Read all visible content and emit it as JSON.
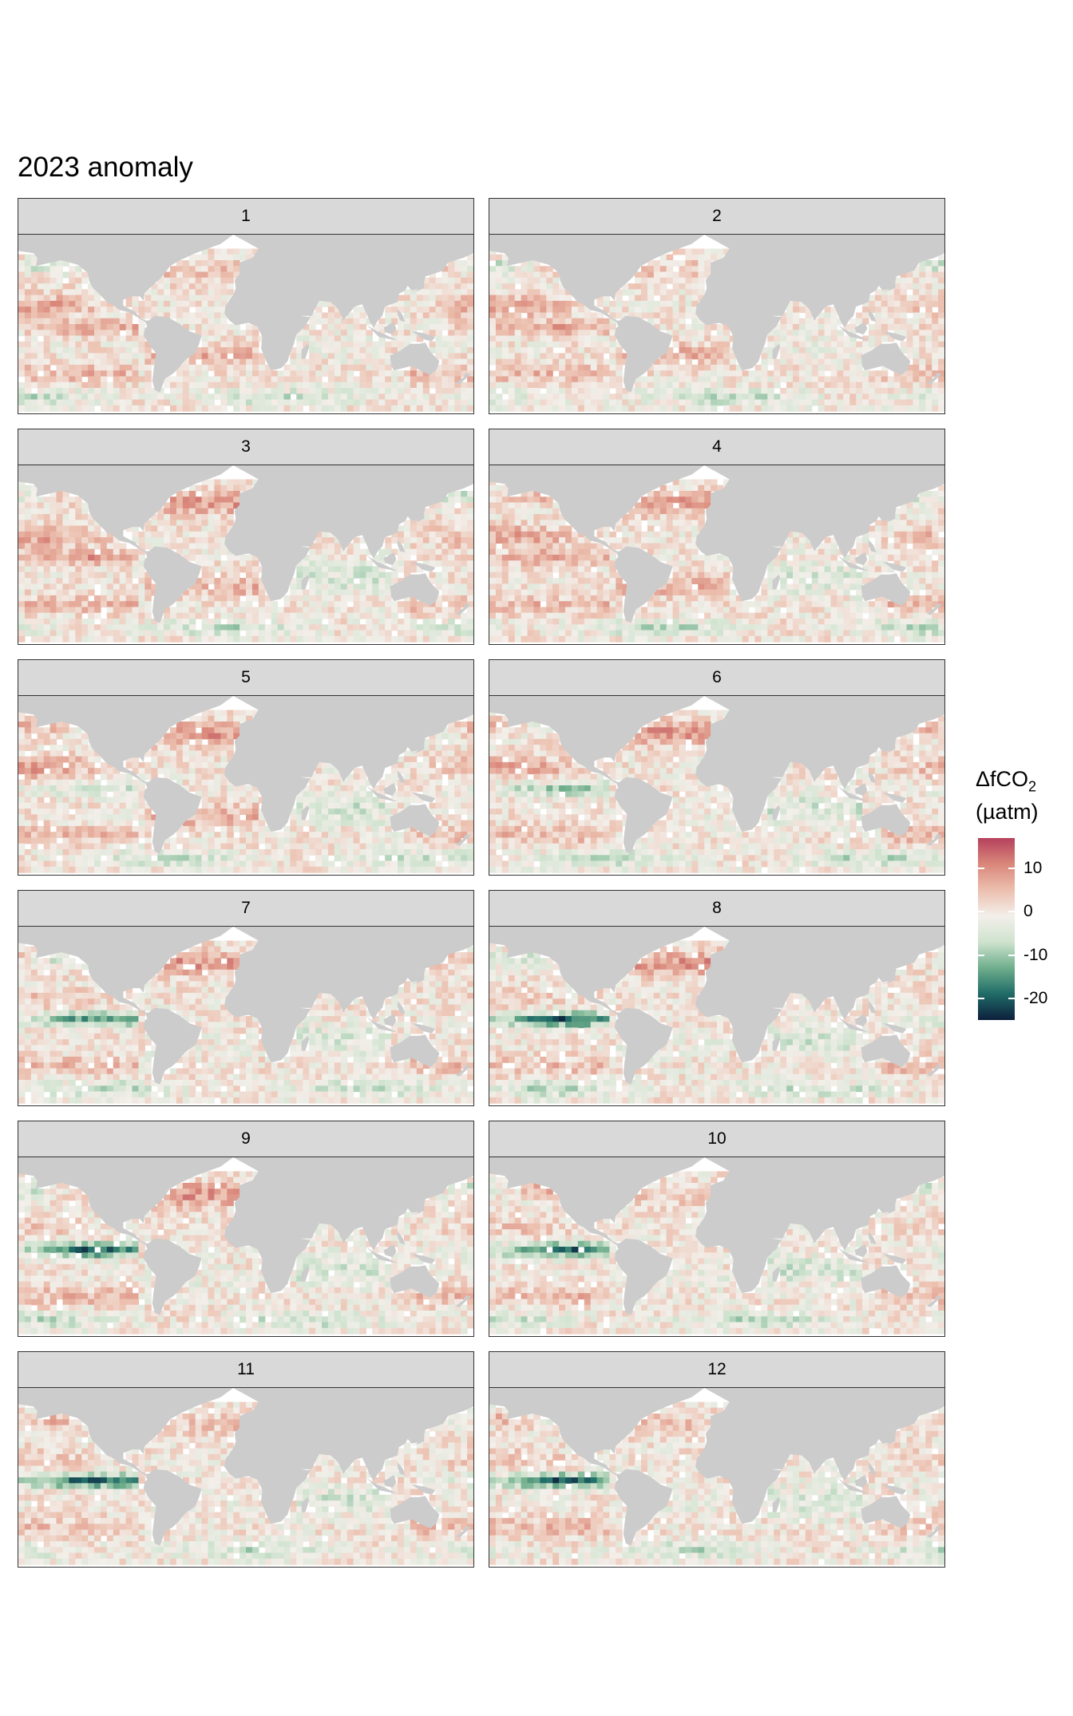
{
  "chart_data": {
    "type": "heatmap",
    "title": "2023 anomaly",
    "facet_variable": "month",
    "facets": [
      {
        "label": "1",
        "month": 1,
        "strong_negative_lon": 160,
        "strong_positive_lon": -170
      },
      {
        "label": "2",
        "month": 2,
        "strong_negative_lon": -100,
        "strong_positive_lon": -170
      },
      {
        "label": "3",
        "month": 3,
        "strong_negative_lon": -110,
        "strong_positive_lon": -170
      },
      {
        "label": "4",
        "month": 4,
        "strong_negative_lon": -95,
        "strong_positive_lon": -150
      },
      {
        "label": "5",
        "month": 5,
        "strong_negative_lon": -100,
        "strong_positive_lon": -160
      },
      {
        "label": "6",
        "month": 6,
        "strong_negative_lon": -110,
        "strong_positive_lon": -130
      },
      {
        "label": "7",
        "month": 7,
        "strong_negative_lon": -120,
        "strong_positive_lon": -160
      },
      {
        "label": "8",
        "month": 8,
        "strong_negative_lon": -120,
        "strong_positive_lon": -150
      },
      {
        "label": "9",
        "month": 9,
        "strong_negative_lon": -130,
        "strong_positive_lon": -140
      },
      {
        "label": "10",
        "month": 10,
        "strong_negative_lon": -120,
        "strong_positive_lon": -160
      },
      {
        "label": "11",
        "month": 11,
        "strong_negative_lon": -120,
        "strong_positive_lon": -170
      },
      {
        "label": "12",
        "month": 12,
        "strong_negative_lon": -120,
        "strong_positive_lon": -160
      }
    ],
    "colorbar": {
      "title": "ΔfCO",
      "title_subscript": "2",
      "unit": "(µatm)",
      "range": [
        -25,
        17
      ],
      "ticks": [
        10,
        0,
        -10,
        -20
      ],
      "tick_labels": [
        "10",
        "0",
        "-10",
        "-20"
      ],
      "colors": [
        "#0d1f3c",
        "#1f6b67",
        "#6fae8c",
        "#cfe3cf",
        "#f3efea",
        "#ecbfae",
        "#d9877a",
        "#b5415c"
      ]
    },
    "map_colors": {
      "land": "#cccccc",
      "no_data": "#ffffff"
    }
  }
}
